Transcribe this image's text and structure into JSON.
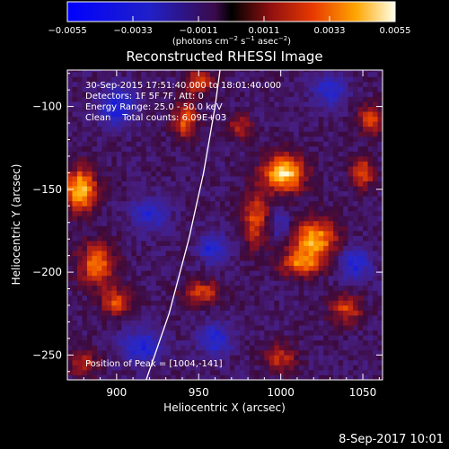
{
  "chart_data": {
    "type": "heatmap",
    "title": "Reconstructed RHESSI Image",
    "xlabel": "Heliocentric X (arcsec)",
    "ylabel": "Heliocentric Y (arcsec)",
    "xlim": [
      870,
      1062
    ],
    "ylim": [
      -265,
      -78
    ],
    "x_ticks": [
      {
        "value": 900,
        "label": "900"
      },
      {
        "value": 950,
        "label": "950"
      },
      {
        "value": 1000,
        "label": "1000"
      },
      {
        "value": 1050,
        "label": "1050"
      }
    ],
    "y_ticks": [
      {
        "value": -100,
        "label": "−100"
      },
      {
        "value": -150,
        "label": "−150"
      },
      {
        "value": -200,
        "label": "−200"
      },
      {
        "value": -250,
        "label": "−250"
      }
    ],
    "colorbar": {
      "min": -0.0055,
      "max": 0.0055,
      "ticks": [
        {
          "value": -0.0055,
          "label": "−0.0055"
        },
        {
          "value": -0.0033,
          "label": "−0.0033"
        },
        {
          "value": -0.0011,
          "label": "−0.0011"
        },
        {
          "value": 0.0011,
          "label": "0.0011"
        },
        {
          "value": 0.0033,
          "label": "0.0033"
        },
        {
          "value": 0.0055,
          "label": "0.0055"
        }
      ],
      "unit": {
        "base": "(photons cm",
        "sup1": "−2",
        "mid1": " s",
        "sup2": "−1",
        "mid2": " asec",
        "sup3": "−2",
        "end": ")"
      }
    },
    "annotations": [
      "30-Sep-2015 17:51:40.000 to 18:01:40.000",
      "Detectors: 1F 5F 7F, Att: 0",
      "Energy Range: 25.0 - 50.0 keV",
      "Clean    Total counts: 6.09E+03"
    ],
    "peak_label": "Position of Peak = [1004,-141]",
    "peak": [
      1004,
      -141
    ],
    "limb_curve": [
      [
        918,
        -265
      ],
      [
        932,
        -225
      ],
      [
        944,
        -180
      ],
      [
        953,
        -140
      ],
      [
        960,
        -100
      ],
      [
        963,
        -78
      ]
    ],
    "sources": [
      {
        "x": 1002,
        "y": -140,
        "sx": 9,
        "sy": 8,
        "amp": 0.0055
      },
      {
        "x": 1020,
        "y": -180,
        "sx": 10,
        "sy": 9,
        "amp": 0.0048
      },
      {
        "x": 985,
        "y": -168,
        "sx": 6,
        "sy": 12,
        "amp": 0.0032
      },
      {
        "x": 1012,
        "y": -195,
        "sx": 9,
        "sy": 5,
        "amp": 0.0034
      },
      {
        "x": 878,
        "y": -150,
        "sx": 7,
        "sy": 9,
        "amp": 0.0052
      },
      {
        "x": 888,
        "y": -195,
        "sx": 8,
        "sy": 9,
        "amp": 0.0038
      },
      {
        "x": 900,
        "y": -218,
        "sx": 7,
        "sy": 6,
        "amp": 0.0032
      },
      {
        "x": 952,
        "y": -212,
        "sx": 8,
        "sy": 5,
        "amp": 0.003
      },
      {
        "x": 942,
        "y": -108,
        "sx": 5,
        "sy": 8,
        "amp": 0.0035
      },
      {
        "x": 950,
        "y": -85,
        "sx": 6,
        "sy": 5,
        "amp": 0.0033
      },
      {
        "x": 1050,
        "y": -140,
        "sx": 5,
        "sy": 6,
        "amp": 0.0035
      },
      {
        "x": 1055,
        "y": -108,
        "sx": 6,
        "sy": 6,
        "amp": 0.003
      },
      {
        "x": 1040,
        "y": -222,
        "sx": 7,
        "sy": 6,
        "amp": 0.003
      },
      {
        "x": 1000,
        "y": -252,
        "sx": 7,
        "sy": 6,
        "amp": 0.0026
      },
      {
        "x": 975,
        "y": -112,
        "sx": 5,
        "sy": 5,
        "amp": 0.0025
      },
      {
        "x": 880,
        "y": -255,
        "sx": 6,
        "sy": 6,
        "amp": 0.0025
      },
      {
        "x": 958,
        "y": -185,
        "sx": 6,
        "sy": 6,
        "amp": -0.0028
      },
      {
        "x": 1000,
        "y": -172,
        "sx": 6,
        "sy": 6,
        "amp": -0.002
      },
      {
        "x": 900,
        "y": -100,
        "sx": 8,
        "sy": 8,
        "amp": -0.003
      },
      {
        "x": 915,
        "y": -245,
        "sx": 9,
        "sy": 7,
        "amp": -0.003
      },
      {
        "x": 960,
        "y": -240,
        "sx": 7,
        "sy": 7,
        "amp": -0.0028
      },
      {
        "x": 1045,
        "y": -195,
        "sx": 7,
        "sy": 7,
        "amp": -0.0028
      },
      {
        "x": 1030,
        "y": -90,
        "sx": 7,
        "sy": 7,
        "amp": -0.0026
      },
      {
        "x": 920,
        "y": -165,
        "sx": 8,
        "sy": 7,
        "amp": -0.0025
      }
    ]
  },
  "footer": {
    "timestamp": "8-Sep-2017 10:01"
  }
}
